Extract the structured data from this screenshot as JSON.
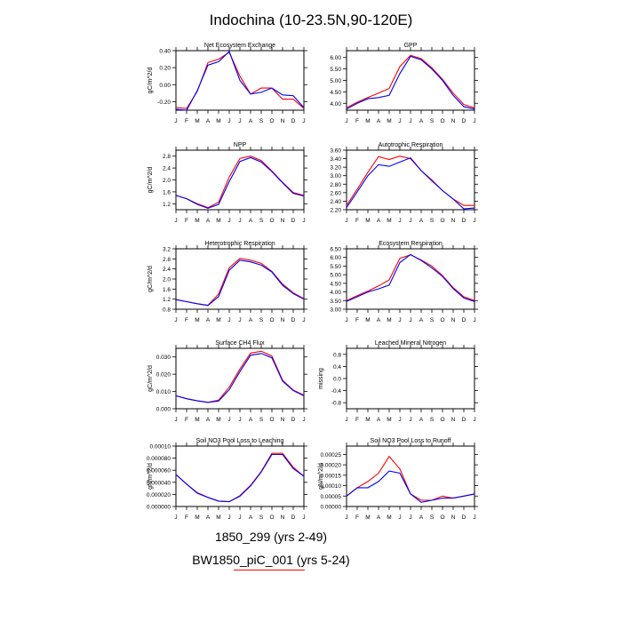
{
  "figure": {
    "title": "Indochina (10-23.5N,90-120E)",
    "legend": [
      {
        "label": "1850_299 (yrs 2-49)",
        "color": "#0000ff"
      },
      {
        "label": "BW1850_piC_001 (yrs 5-24)",
        "color": "#ff0000"
      }
    ]
  },
  "chart_data": [
    {
      "type": "line",
      "title": "Net Ecosystem Exchange",
      "ylabel": "gC/m^2/d",
      "categories": [
        "J",
        "F",
        "M",
        "A",
        "M",
        "J",
        "J",
        "A",
        "S",
        "O",
        "N",
        "D",
        "J"
      ],
      "ylim": [
        -0.3,
        0.4
      ],
      "yticks": [
        -0.2,
        0.0,
        0.2,
        0.4
      ],
      "yticklabels": [
        "-0.20",
        "0.00",
        "0.20",
        "0.40"
      ],
      "series": [
        {
          "color": "#ff0000",
          "values": [
            -0.27,
            -0.28,
            -0.08,
            0.26,
            0.3,
            0.38,
            0.1,
            -0.11,
            -0.04,
            -0.04,
            -0.17,
            -0.17,
            -0.28
          ]
        },
        {
          "color": "#0000ff",
          "values": [
            -0.29,
            -0.3,
            -0.07,
            0.23,
            0.27,
            0.39,
            0.05,
            -0.11,
            -0.09,
            -0.04,
            -0.12,
            -0.13,
            -0.27
          ]
        }
      ]
    },
    {
      "type": "line",
      "title": "GPP",
      "ylabel": "",
      "categories": [
        "J",
        "F",
        "M",
        "A",
        "M",
        "J",
        "J",
        "A",
        "S",
        "O",
        "N",
        "D",
        "J"
      ],
      "ylim": [
        3.7,
        6.3
      ],
      "yticks": [
        4.0,
        4.5,
        5.0,
        5.5,
        6.0
      ],
      "yticklabels": [
        "4.00",
        "4.50",
        "5.00",
        "5.50",
        "6.00"
      ],
      "series": [
        {
          "color": "#ff0000",
          "values": [
            3.8,
            4.05,
            4.25,
            4.45,
            4.65,
            5.6,
            6.1,
            5.95,
            5.55,
            5.05,
            4.45,
            3.95,
            3.8
          ]
        },
        {
          "color": "#0000ff",
          "values": [
            3.75,
            4.0,
            4.2,
            4.25,
            4.35,
            5.3,
            6.05,
            5.9,
            5.5,
            5.0,
            4.35,
            3.85,
            3.75
          ]
        }
      ]
    },
    {
      "type": "line",
      "title": "NPP",
      "ylabel": "gC/m^2/d",
      "categories": [
        "J",
        "F",
        "M",
        "A",
        "M",
        "J",
        "J",
        "A",
        "S",
        "O",
        "N",
        "D",
        "J"
      ],
      "ylim": [
        1.0,
        3.0
      ],
      "yticks": [
        1.2,
        1.6,
        2.0,
        2.4,
        2.8
      ],
      "yticklabels": [
        "1.2",
        "1.6",
        "2.0",
        "2.4",
        "2.8"
      ],
      "series": [
        {
          "color": "#ff0000",
          "values": [
            1.48,
            1.37,
            1.2,
            1.07,
            1.25,
            2.1,
            2.72,
            2.8,
            2.65,
            2.3,
            1.92,
            1.58,
            1.48
          ]
        },
        {
          "color": "#0000ff",
          "values": [
            1.48,
            1.37,
            1.18,
            1.05,
            1.18,
            1.95,
            2.62,
            2.75,
            2.6,
            2.28,
            1.9,
            1.55,
            1.46
          ]
        }
      ]
    },
    {
      "type": "line",
      "title": "Autotrophic Respiration",
      "ylabel": "",
      "categories": [
        "J",
        "F",
        "M",
        "A",
        "M",
        "J",
        "J",
        "A",
        "S",
        "O",
        "N",
        "D",
        "J"
      ],
      "ylim": [
        2.2,
        3.6
      ],
      "yticks": [
        2.2,
        2.4,
        2.6,
        2.8,
        3.0,
        3.2,
        3.4,
        3.6
      ],
      "yticklabels": [
        "2.20",
        "2.40",
        "2.60",
        "2.80",
        "3.00",
        "3.20",
        "3.40",
        "3.60"
      ],
      "series": [
        {
          "color": "#ff0000",
          "values": [
            2.3,
            2.68,
            3.08,
            3.45,
            3.38,
            3.46,
            3.4,
            3.12,
            2.9,
            2.65,
            2.45,
            2.3,
            2.3
          ]
        },
        {
          "color": "#0000ff",
          "values": [
            2.25,
            2.62,
            3.0,
            3.26,
            3.22,
            3.32,
            3.42,
            3.12,
            2.88,
            2.65,
            2.45,
            2.22,
            2.24
          ]
        }
      ]
    },
    {
      "type": "line",
      "title": "Heterotrophic Respiration",
      "ylabel": "gC/m^2/d",
      "categories": [
        "J",
        "F",
        "M",
        "A",
        "M",
        "J",
        "J",
        "A",
        "S",
        "O",
        "N",
        "D",
        "J"
      ],
      "ylim": [
        0.8,
        3.2
      ],
      "yticks": [
        0.8,
        1.2,
        1.6,
        2.0,
        2.4,
        2.8,
        3.2
      ],
      "yticklabels": [
        "0.8",
        "1.2",
        "1.6",
        "2.0",
        "2.4",
        "2.8",
        "3.2"
      ],
      "series": [
        {
          "color": "#ff0000",
          "values": [
            1.18,
            1.1,
            1.02,
            0.96,
            1.4,
            2.45,
            2.82,
            2.75,
            2.62,
            2.3,
            1.8,
            1.45,
            1.22
          ]
        },
        {
          "color": "#0000ff",
          "values": [
            1.18,
            1.1,
            1.02,
            0.95,
            1.3,
            2.35,
            2.75,
            2.68,
            2.55,
            2.28,
            1.75,
            1.42,
            1.2
          ]
        }
      ]
    },
    {
      "type": "line",
      "title": "Ecosystem Respiration",
      "ylabel": "",
      "categories": [
        "J",
        "F",
        "M",
        "A",
        "M",
        "J",
        "J",
        "A",
        "S",
        "O",
        "N",
        "D",
        "J"
      ],
      "ylim": [
        3.0,
        6.5
      ],
      "yticks": [
        3.0,
        3.5,
        4.0,
        4.5,
        5.0,
        5.5,
        6.0,
        6.5
      ],
      "yticklabels": [
        "3.00",
        "3.50",
        "4.00",
        "4.50",
        "5.00",
        "5.50",
        "6.00",
        "6.50"
      ],
      "series": [
        {
          "color": "#ff0000",
          "values": [
            3.5,
            3.78,
            4.05,
            4.35,
            4.7,
            5.95,
            6.15,
            5.85,
            5.5,
            4.95,
            4.25,
            3.72,
            3.5
          ]
        },
        {
          "color": "#0000ff",
          "values": [
            3.45,
            3.72,
            4.0,
            4.18,
            4.4,
            5.7,
            6.17,
            5.82,
            5.4,
            4.9,
            4.2,
            3.65,
            3.45
          ]
        }
      ]
    },
    {
      "type": "line",
      "title": "Surface CH4 Flux",
      "ylabel": "gC/m^2/d",
      "categories": [
        "J",
        "F",
        "M",
        "A",
        "M",
        "J",
        "J",
        "A",
        "S",
        "O",
        "N",
        "D",
        "J"
      ],
      "ylim": [
        0.0,
        0.035
      ],
      "yticks": [
        0.0,
        0.01,
        0.02,
        0.03
      ],
      "yticklabels": [
        "0.000",
        "0.010",
        "0.020",
        "0.030"
      ],
      "series": [
        {
          "color": "#ff0000",
          "values": [
            0.0075,
            0.0058,
            0.0046,
            0.0037,
            0.005,
            0.0125,
            0.023,
            0.0322,
            0.0333,
            0.0305,
            0.0165,
            0.0108,
            0.0078
          ]
        },
        {
          "color": "#0000ff",
          "values": [
            0.0075,
            0.0058,
            0.0046,
            0.0037,
            0.0045,
            0.011,
            0.0215,
            0.031,
            0.032,
            0.0295,
            0.016,
            0.0105,
            0.0075
          ]
        }
      ]
    },
    {
      "type": "line",
      "title": "Leached Mineral Nitrogen",
      "ylabel": "missing",
      "categories": [
        "J",
        "F",
        "M",
        "A",
        "M",
        "J",
        "J",
        "A",
        "S",
        "O",
        "N",
        "D",
        "J"
      ],
      "ylim": [
        -1.0,
        1.0
      ],
      "yticks": [
        -0.8,
        -0.4,
        0.0,
        0.4,
        0.8
      ],
      "yticklabels": [
        "-0.8",
        "-0.4",
        "0.0",
        "0.4",
        "0.8"
      ],
      "series": []
    },
    {
      "type": "line",
      "title": "Soil NO3 Pool Loss to Leaching",
      "ylabel": "gN/m^2/d",
      "categories": [
        "J",
        "F",
        "M",
        "A",
        "M",
        "J",
        "J",
        "A",
        "S",
        "O",
        "N",
        "D",
        "J"
      ],
      "ylim": [
        0.0,
        0.0001
      ],
      "yticks": [
        0.0,
        2e-05,
        4e-05,
        6e-05,
        8e-05,
        0.0001
      ],
      "yticklabels": [
        "0.000000",
        "0.000020",
        "0.000040",
        "0.000060",
        "0.000080",
        "0.00010"
      ],
      "series": [
        {
          "color": "#ff0000",
          "values": [
            5.3e-05,
            3.7e-05,
            2.3e-05,
            1.5e-05,
            9e-06,
            8e-06,
            1.8e-05,
            3.5e-05,
            5.8e-05,
            8.8e-05,
            8.8e-05,
            6.5e-05,
            5e-05
          ]
        },
        {
          "color": "#0000ff",
          "values": [
            5.3e-05,
            3.7e-05,
            2.2e-05,
            1.5e-05,
            9e-06,
            8e-06,
            1.7e-05,
            3.4e-05,
            5.7e-05,
            8.6e-05,
            8.6e-05,
            6.3e-05,
            5e-05
          ]
        }
      ]
    },
    {
      "type": "line",
      "title": "Soil NO3 Pool Loss to Runoff",
      "ylabel": "gN/m^2/d",
      "categories": [
        "J",
        "F",
        "M",
        "A",
        "M",
        "J",
        "J",
        "A",
        "S",
        "O",
        "N",
        "D",
        "J"
      ],
      "ylim": [
        0.0,
        0.00029
      ],
      "yticks": [
        0.0,
        5e-05,
        0.0001,
        0.00015,
        0.0002,
        0.00025
      ],
      "yticklabels": [
        "0.00000",
        "0.00005",
        "0.00010",
        "0.00015",
        "0.00020",
        "0.00025"
      ],
      "series": [
        {
          "color": "#ff0000",
          "values": [
            5e-05,
            9e-05,
            0.00012,
            0.00016,
            0.00024,
            0.00018,
            6e-05,
            3e-05,
            3e-05,
            5e-05,
            4e-05,
            5e-05,
            6e-05
          ]
        },
        {
          "color": "#0000ff",
          "values": [
            5e-05,
            9e-05,
            9e-05,
            0.00012,
            0.00017,
            0.00016,
            6e-05,
            2e-05,
            3e-05,
            4e-05,
            4e-05,
            5e-05,
            6e-05
          ]
        }
      ]
    }
  ]
}
